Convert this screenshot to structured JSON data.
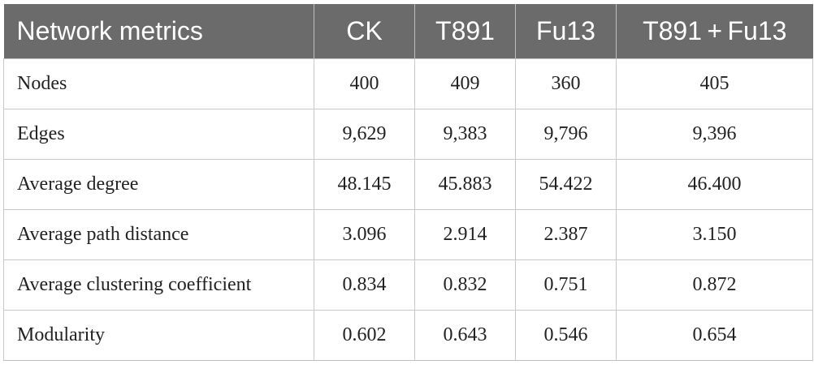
{
  "table": {
    "headers": [
      "Network metrics",
      "CK",
      "T891",
      "Fu13",
      "T891 + Fu13"
    ],
    "rows": [
      [
        "Nodes",
        "400",
        "409",
        "360",
        "405"
      ],
      [
        "Edges",
        "9,629",
        "9,383",
        "9,796",
        "9,396"
      ],
      [
        "Average degree",
        "48.145",
        "45.883",
        "54.422",
        "46.400"
      ],
      [
        "Average path distance",
        "3.096",
        "2.914",
        "2.387",
        "3.150"
      ],
      [
        "Average clustering coefficient",
        "0.834",
        "0.832",
        "0.751",
        "0.872"
      ],
      [
        "Modularity",
        "0.602",
        "0.643",
        "0.546",
        "0.654"
      ]
    ]
  },
  "colors": {
    "header_background": "#6b6b6b",
    "header_text": "#ffffff",
    "grid_lines": "#c8c8c8"
  }
}
